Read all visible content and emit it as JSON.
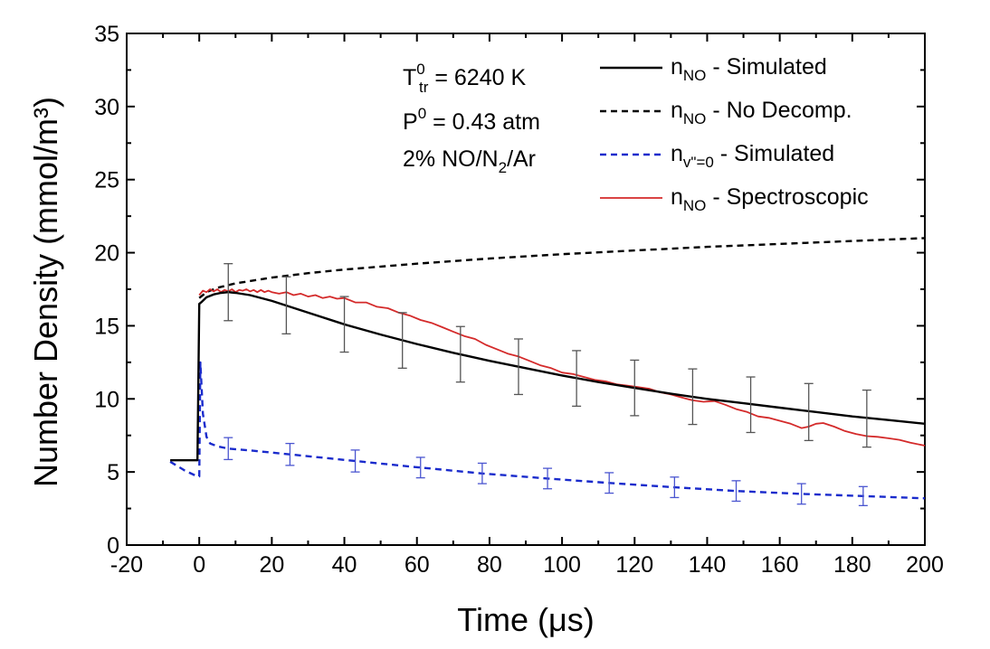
{
  "chart_data": {
    "type": "line",
    "xlabel": "Time (μs)",
    "ylabel": "Number Density (mmol/m³)",
    "xlim": [
      -20,
      200
    ],
    "ylim": [
      0,
      35
    ],
    "x_ticks": [
      -20,
      0,
      20,
      40,
      60,
      80,
      100,
      120,
      140,
      160,
      180,
      200
    ],
    "y_ticks": [
      0,
      5,
      10,
      15,
      20,
      25,
      30,
      35
    ],
    "grid": false,
    "legend_position": "top-right",
    "conditions": {
      "temperature": {
        "base": "T",
        "sub": "tr",
        "sup": "0",
        "text": "= 6240 K"
      },
      "pressure": {
        "base": "P",
        "sup": "0",
        "text": "= 0.43 atm"
      },
      "mixture": {
        "a": "2% NO/N",
        "sub": "2",
        "b": "/Ar"
      }
    },
    "series": [
      {
        "key": "sim",
        "legend": {
          "base": "n",
          "sub": "NO",
          "text": "- Simulated"
        },
        "color": "#000000",
        "style": "solid",
        "x": [
          -8,
          -0.5,
          0,
          0.5,
          2,
          4,
          6,
          8,
          10,
          14,
          20,
          30,
          40,
          50,
          60,
          70,
          80,
          90,
          100,
          110,
          120,
          130,
          140,
          150,
          160,
          170,
          180,
          190,
          200
        ],
        "y": [
          5.8,
          5.8,
          16.5,
          16.6,
          16.95,
          17.15,
          17.25,
          17.3,
          17.25,
          17.1,
          16.7,
          15.9,
          15.1,
          14.4,
          13.75,
          13.15,
          12.6,
          12.1,
          11.6,
          11.15,
          10.75,
          10.35,
          10.0,
          9.7,
          9.4,
          9.1,
          8.8,
          8.55,
          8.3
        ]
      },
      {
        "key": "nodecomp",
        "legend": {
          "base": "n",
          "sub": "NO",
          "text": "- No Decomp."
        },
        "color": "#000000",
        "style": "dashed",
        "x": [
          0,
          2,
          5,
          10,
          20,
          30,
          40,
          60,
          80,
          100,
          120,
          140,
          160,
          180,
          200
        ],
        "y": [
          16.9,
          17.3,
          17.6,
          17.9,
          18.3,
          18.6,
          18.85,
          19.25,
          19.6,
          19.9,
          20.15,
          20.4,
          20.6,
          20.8,
          21.0
        ]
      },
      {
        "key": "v0",
        "legend": {
          "base": "n",
          "sub": "v\"=0",
          "text": "- Simulated"
        },
        "color": "#1a2bcc",
        "style": "dashed",
        "x": [
          -8,
          -4,
          -1,
          0,
          0.3,
          1,
          2,
          3,
          5,
          8,
          15,
          25,
          43,
          61,
          78,
          96,
          113,
          131,
          148,
          166,
          183,
          200
        ],
        "y": [
          5.7,
          5.1,
          4.75,
          4.7,
          12.5,
          9.0,
          7.4,
          6.95,
          6.75,
          6.6,
          6.45,
          6.2,
          5.75,
          5.3,
          4.9,
          4.55,
          4.25,
          3.95,
          3.7,
          3.5,
          3.35,
          3.2
        ],
        "errorbars": {
          "x": [
            8,
            25,
            43,
            61,
            78,
            96,
            113,
            131,
            148,
            166,
            183
          ],
          "y": [
            6.6,
            6.2,
            5.75,
            5.3,
            4.9,
            4.55,
            4.25,
            3.95,
            3.7,
            3.5,
            3.35
          ],
          "err": [
            0.75,
            0.75,
            0.75,
            0.7,
            0.7,
            0.7,
            0.7,
            0.7,
            0.7,
            0.7,
            0.65
          ]
        }
      },
      {
        "key": "spec",
        "legend": {
          "base": "n",
          "sub": "NO",
          "text": "- Spectroscopic"
        },
        "color": "#d42a2a",
        "style": "solid",
        "x": [
          0,
          1,
          2,
          3,
          4,
          5,
          6,
          7,
          8,
          9,
          10,
          11,
          12,
          13,
          14,
          15,
          16,
          17,
          18,
          19,
          20,
          22,
          24,
          26,
          28,
          30,
          32,
          34,
          36,
          38,
          40,
          43,
          46,
          49,
          52,
          55,
          58,
          61,
          64,
          67,
          70,
          73,
          76,
          79,
          82,
          85,
          88,
          91,
          94,
          97,
          100,
          103,
          106,
          109,
          112,
          115,
          118,
          121,
          124,
          127,
          130,
          133,
          136,
          139,
          142,
          145,
          148,
          151,
          154,
          157,
          160,
          163,
          166,
          168,
          170,
          172,
          175,
          178,
          181,
          184,
          187,
          190,
          193,
          196,
          200
        ],
        "y": [
          17.1,
          17.4,
          17.3,
          17.5,
          17.35,
          17.5,
          17.3,
          17.45,
          17.35,
          17.5,
          17.3,
          17.45,
          17.4,
          17.5,
          17.35,
          17.45,
          17.3,
          17.45,
          17.3,
          17.4,
          17.3,
          17.2,
          17.3,
          17.1,
          17.2,
          17.0,
          17.1,
          16.9,
          17.0,
          16.85,
          16.9,
          16.6,
          16.6,
          16.3,
          16.2,
          15.9,
          15.7,
          15.4,
          15.2,
          14.9,
          14.6,
          14.3,
          14.1,
          13.7,
          13.4,
          13.1,
          12.9,
          12.6,
          12.3,
          12.1,
          11.8,
          11.7,
          11.5,
          11.3,
          11.2,
          11.0,
          10.9,
          10.8,
          10.7,
          10.45,
          10.3,
          10.1,
          9.9,
          9.8,
          9.85,
          9.6,
          9.3,
          9.1,
          8.8,
          8.7,
          8.5,
          8.3,
          8.0,
          8.1,
          8.3,
          8.35,
          8.1,
          7.8,
          7.6,
          7.45,
          7.4,
          7.3,
          7.2,
          7.0,
          6.8
        ]
      }
    ],
    "errorbars_sim": {
      "x": [
        8,
        24,
        40,
        56,
        72,
        88,
        104,
        120,
        136,
        152,
        168,
        184
      ],
      "y": [
        17.3,
        16.4,
        15.1,
        14.0,
        13.05,
        12.2,
        11.4,
        10.75,
        10.15,
        9.6,
        9.1,
        8.65
      ],
      "err": [
        1.95,
        1.95,
        1.9,
        1.9,
        1.9,
        1.9,
        1.9,
        1.9,
        1.9,
        1.9,
        1.95,
        1.95
      ]
    }
  }
}
